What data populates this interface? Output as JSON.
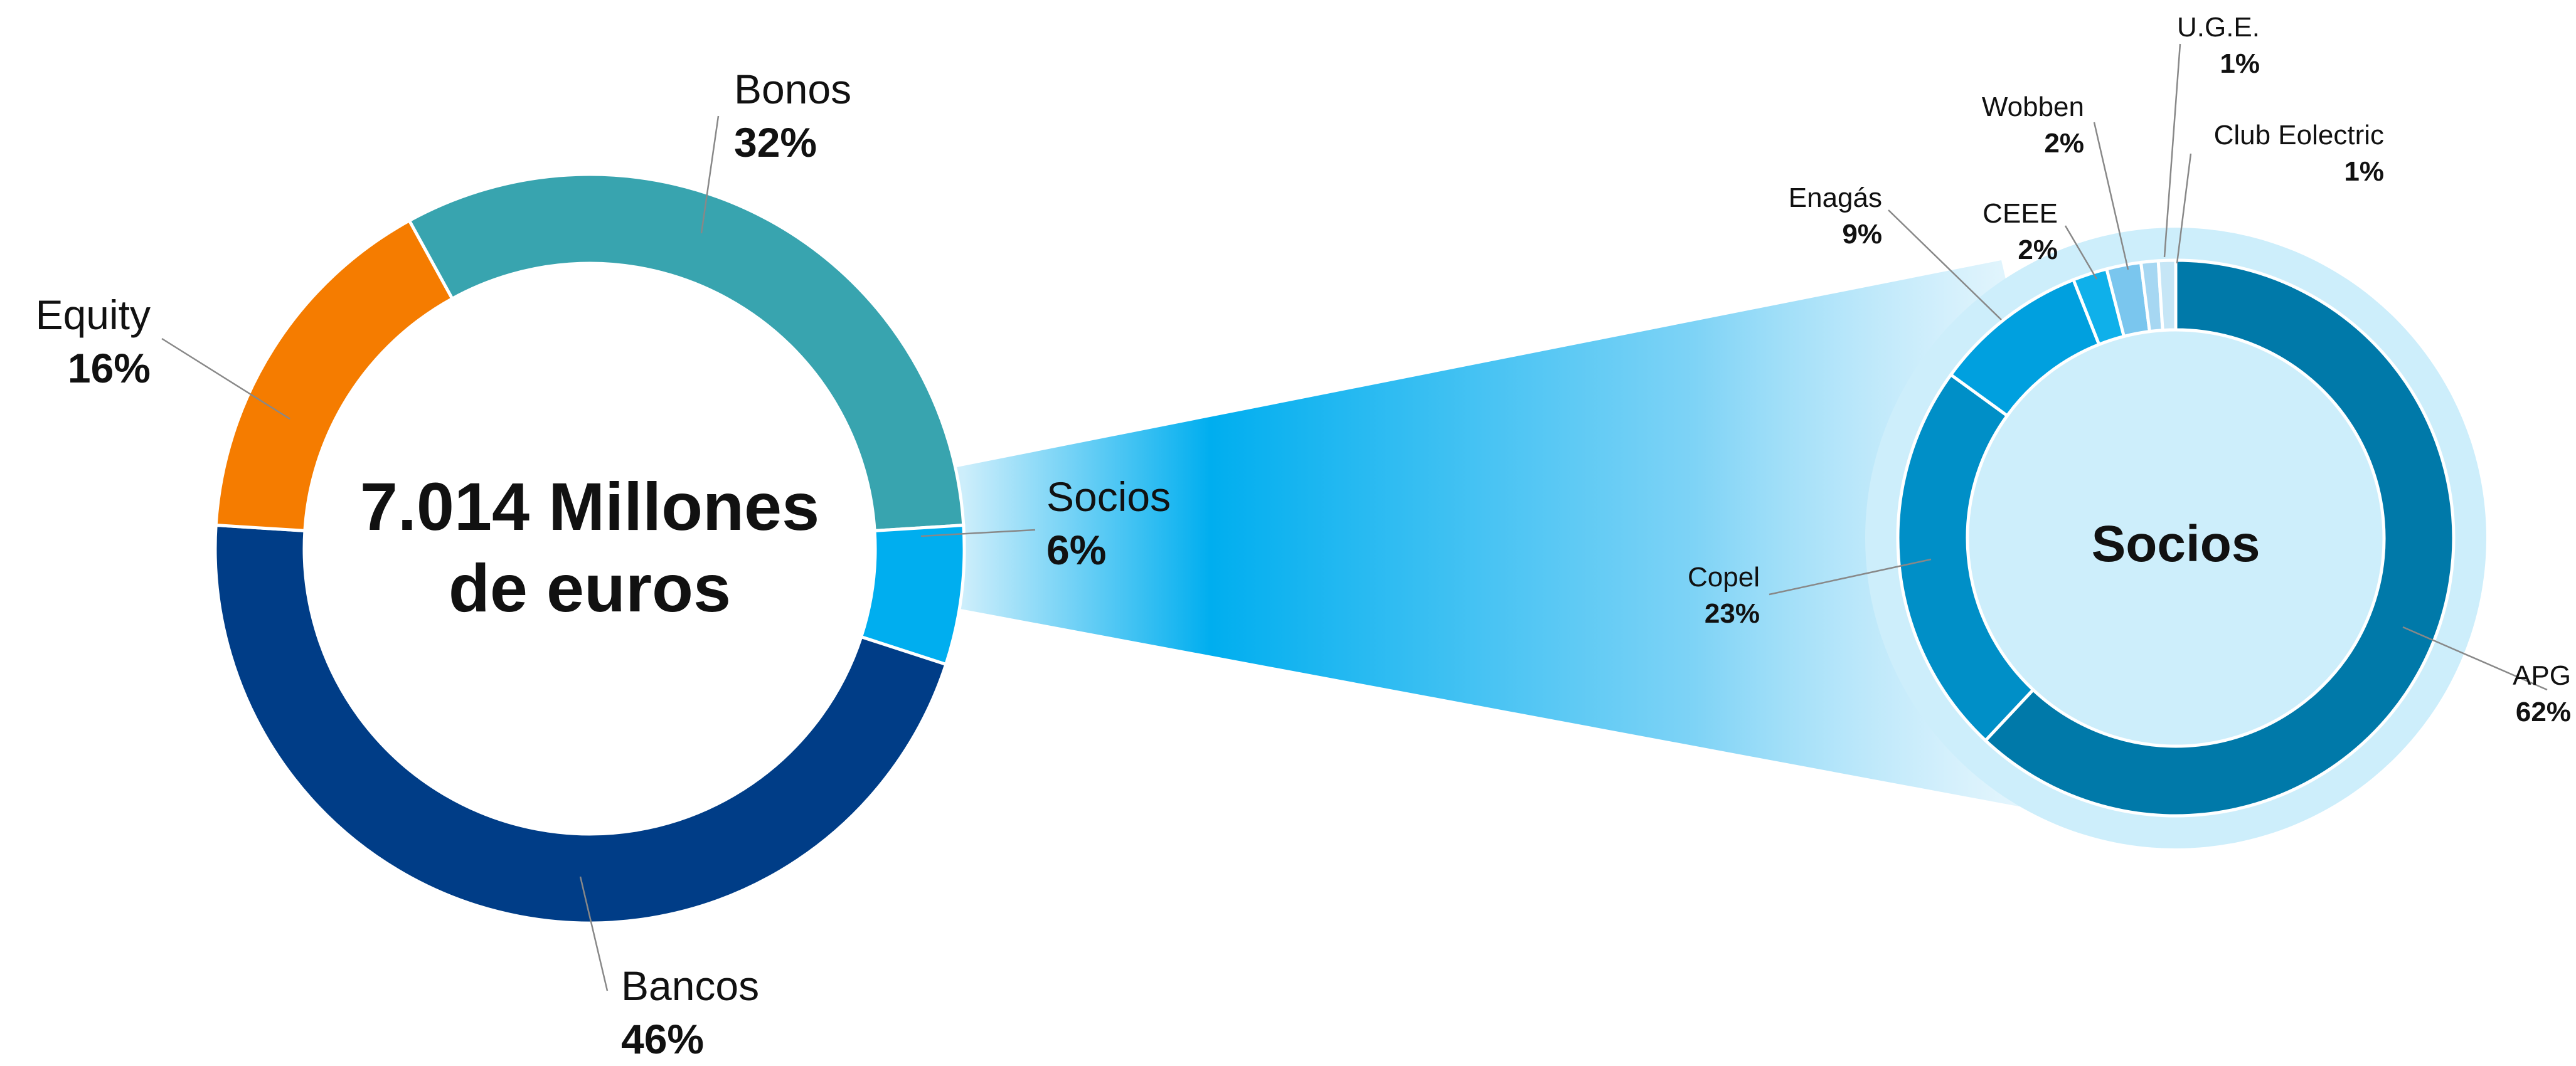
{
  "chart_data": [
    {
      "type": "pie",
      "variant": "donut",
      "center_label": [
        "7.014 Millones",
        "de euros"
      ],
      "slices": [
        {
          "name": "Bonos",
          "value": 32,
          "label": "32%",
          "color": "#38A4AF"
        },
        {
          "name": "Socios",
          "value": 6,
          "label": "6%",
          "color": "#00AEEF"
        },
        {
          "name": "Bancos",
          "value": 46,
          "label": "46%",
          "color": "#003D87"
        },
        {
          "name": "Equity",
          "value": 16,
          "label": "16%",
          "color": "#F57C00"
        }
      ]
    },
    {
      "type": "pie",
      "variant": "donut",
      "title": "Socios",
      "breakdown_of": "Socios",
      "slices": [
        {
          "name": "APG",
          "value": 62,
          "label": "62%",
          "color": "#0079A9"
        },
        {
          "name": "Copel",
          "value": 23,
          "label": "23%",
          "color": "#008FC7"
        },
        {
          "name": "Enagás",
          "value": 9,
          "label": "9%",
          "color": "#00A0DF"
        },
        {
          "name": "CEEE",
          "value": 2,
          "label": "2%",
          "color": "#0FB0EA"
        },
        {
          "name": "Wobben",
          "value": 2,
          "label": "2%",
          "color": "#7AC6EE"
        },
        {
          "name": "U.G.E.",
          "value": 1,
          "label": "1%",
          "color": "#A6D7F2"
        },
        {
          "name": "Club Eolectric",
          "value": 1,
          "label": "1%",
          "color": "#C6E6F6"
        }
      ]
    }
  ]
}
